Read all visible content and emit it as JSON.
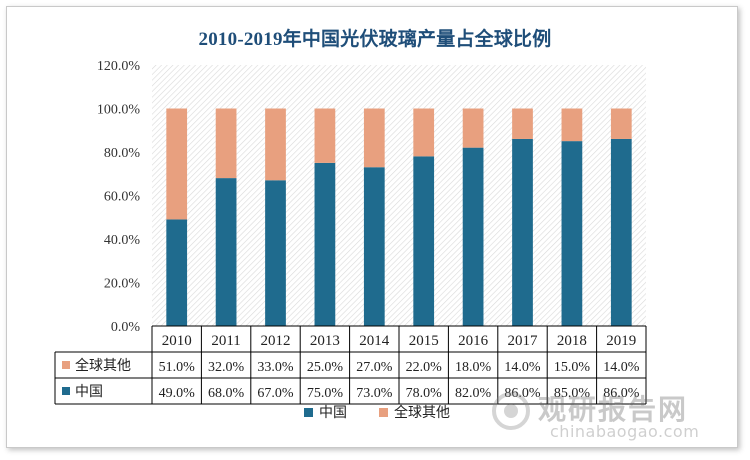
{
  "chart_data": {
    "type": "bar",
    "stacked": true,
    "title": "2010-2019年中国光伏玻璃产量占全球比例",
    "categories": [
      "2010",
      "2011",
      "2012",
      "2013",
      "2014",
      "2015",
      "2016",
      "2017",
      "2018",
      "2019"
    ],
    "series": [
      {
        "name": "中国",
        "color": "#1f6b8e",
        "values": [
          49.0,
          68.0,
          67.0,
          75.0,
          73.0,
          78.0,
          82.0,
          86.0,
          85.0,
          86.0
        ],
        "labels": [
          "49.0%",
          "68.0%",
          "67.0%",
          "75.0%",
          "73.0%",
          "78.0%",
          "82.0%",
          "86.0%",
          "85.0%",
          "86.0%"
        ]
      },
      {
        "name": "全球其他",
        "color": "#e8a07f",
        "values": [
          51.0,
          32.0,
          33.0,
          25.0,
          27.0,
          22.0,
          18.0,
          14.0,
          15.0,
          14.0
        ],
        "labels": [
          "51.0%",
          "32.0%",
          "33.0%",
          "25.0%",
          "27.0%",
          "22.0%",
          "18.0%",
          "14.0%",
          "15.0%",
          "14.0%"
        ]
      }
    ],
    "ylim": [
      0,
      120
    ],
    "yticks": [
      "0.0%",
      "20.0%",
      "40.0%",
      "60.0%",
      "80.0%",
      "100.0%",
      "120.0%"
    ],
    "table_rows_order": [
      "全球其他",
      "中国"
    ],
    "legend_position": "bottom",
    "grid": false
  },
  "watermark": {
    "cn": "观研报告网",
    "en": "chinabaogao.com"
  }
}
